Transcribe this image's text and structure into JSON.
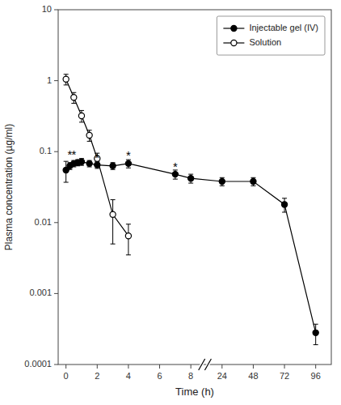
{
  "chart_data": {
    "type": "line",
    "xlabel": "Time (h)",
    "ylabel": "Plasma concentration (µg/ml)",
    "log": "y",
    "grid": false,
    "legend": "upper right",
    "xlim": [
      -0.5,
      108
    ],
    "xticks": [
      0,
      2,
      4,
      6,
      8,
      24,
      48,
      72,
      96
    ],
    "ylim": [
      0.0001,
      10
    ],
    "yticks": [
      0.0001,
      0.001,
      0.01,
      0.1,
      1,
      10
    ],
    "series": [
      {
        "name": "Injectable gel (IV)",
        "color": "#000000",
        "marker": "circle",
        "line_style": "solid",
        "x": [
          0,
          0.25,
          0.5,
          0.75,
          1,
          1.5,
          2,
          3,
          4,
          7,
          8,
          24,
          48,
          72,
          96
        ],
        "values": [
          0.055,
          0.063,
          0.068,
          0.07,
          0.072,
          0.068,
          0.065,
          0.063,
          0.068,
          0.048,
          0.042,
          0.038,
          0.038,
          0.018,
          0.00028
        ],
        "errors_low": [
          0.018,
          0.007,
          0.007,
          0.007,
          0.008,
          0.007,
          0.007,
          0.007,
          0.009,
          0.007,
          0.006,
          0.005,
          0.005,
          0.004,
          9e-05
        ],
        "errors_high": [
          0.018,
          0.007,
          0.007,
          0.007,
          0.008,
          0.007,
          0.007,
          0.007,
          0.009,
          0.007,
          0.006,
          0.005,
          0.005,
          0.004,
          9e-05
        ]
      },
      {
        "name": "Solution",
        "color": "#000000",
        "marker": "circle-open",
        "line_style": "solid",
        "x": [
          0,
          0.5,
          1,
          1.5,
          2,
          3,
          4
        ],
        "values": [
          1.05,
          0.58,
          0.32,
          0.17,
          0.08,
          0.013,
          0.0065
        ],
        "errors_low": [
          0.18,
          0.1,
          0.06,
          0.03,
          0.015,
          0.008,
          0.003
        ],
        "errors_high": [
          0.18,
          0.1,
          0.06,
          0.03,
          0.015,
          0.008,
          0.003
        ]
      }
    ],
    "annotations": [
      {
        "text": "*",
        "x": 0.25,
        "y": 0.093
      },
      {
        "text": "*",
        "x": 0.5,
        "y": 0.093
      },
      {
        "text": "*",
        "x": 2,
        "y": 0.083
      },
      {
        "text": "*",
        "x": 4,
        "y": 0.09
      },
      {
        "text": "*",
        "x": 7,
        "y": 0.062
      }
    ]
  }
}
